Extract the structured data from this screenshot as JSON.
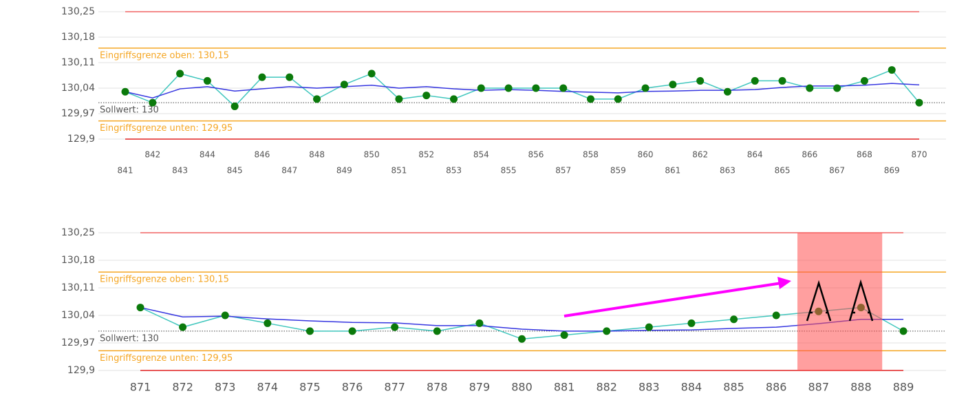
{
  "chart_data": [
    {
      "type": "line",
      "categories": [
        "841",
        "842",
        "843",
        "844",
        "845",
        "846",
        "847",
        "848",
        "849",
        "850",
        "851",
        "852",
        "853",
        "854",
        "855",
        "856",
        "857",
        "858",
        "859",
        "860",
        "861",
        "862",
        "863",
        "864",
        "865",
        "866",
        "867",
        "868",
        "869",
        "870"
      ],
      "series": [
        {
          "color": "#3fc6bd",
          "marker_color": "#0b7a0b",
          "values": [
            130.03,
            130.0,
            130.08,
            130.06,
            129.99,
            130.07,
            130.07,
            130.01,
            130.05,
            130.08,
            130.01,
            130.02,
            130.01,
            130.04,
            130.04,
            130.04,
            130.04,
            130.01,
            130.01,
            130.04,
            130.05,
            130.06,
            130.03,
            130.06,
            130.06,
            130.04,
            130.04,
            130.06,
            130.09,
            130.0
          ]
        },
        {
          "color": "#3535e0",
          "values": [
            130.03,
            130.013,
            130.038,
            130.044,
            130.032,
            130.038,
            130.044,
            130.04,
            130.044,
            130.048,
            130.04,
            130.044,
            130.038,
            130.034,
            130.036,
            130.034,
            130.031,
            130.029,
            130.027,
            130.031,
            130.032,
            130.034,
            130.034,
            130.036,
            130.042,
            130.046,
            130.046,
            130.048,
            130.053,
            130.049
          ]
        }
      ],
      "ylim": [
        129.9,
        130.25
      ],
      "yticks": [
        {
          "value": 130.25,
          "label": "130,25"
        },
        {
          "value": 130.18,
          "label": "130,18"
        },
        {
          "value": 130.11,
          "label": "130,11"
        },
        {
          "value": 130.04,
          "label": "130,04"
        },
        {
          "value": 129.97,
          "label": "129,97"
        },
        {
          "value": 129.9,
          "label": "129,9"
        }
      ],
      "grid": true,
      "reference_lines": [
        {
          "value": 130.25,
          "color": "#f06262",
          "extent": "data"
        },
        {
          "value": 130.15,
          "color": "#f5a623",
          "extent": "plot",
          "label": "Eingriffsgrenze oben: 130,15"
        },
        {
          "value": 130,
          "color": "#444444",
          "extent": "plot",
          "dashed": true,
          "label": "Sollwert: 130",
          "label_color": "#555555"
        },
        {
          "value": 129.95,
          "color": "#f5a623",
          "extent": "plot",
          "label": "Eingriffsgrenze unten: 129,95"
        },
        {
          "value": 129.9,
          "color": "#e02020",
          "extent": "data"
        }
      ]
    },
    {
      "type": "line",
      "categories": [
        "871",
        "872",
        "873",
        "874",
        "875",
        "876",
        "877",
        "878",
        "879",
        "880",
        "881",
        "882",
        "883",
        "884",
        "885",
        "886",
        "887",
        "888",
        "889"
      ],
      "series": [
        {
          "color": "#3fc6bd",
          "marker_color": "#0b7a0b",
          "values": [
            130.06,
            130.01,
            130.04,
            130.02,
            130.0,
            130.0,
            130.01,
            130.0,
            130.02,
            129.98,
            129.99,
            130.0,
            130.01,
            130.02,
            130.03,
            130.04,
            130.05,
            130.06,
            130.0
          ]
        },
        {
          "color": "#3535e0",
          "values": [
            130.06,
            130.036,
            130.038,
            130.031,
            130.026,
            130.022,
            130.021,
            130.014,
            130.014,
            130.005,
            130.0,
            130.0,
            130.002,
            130.003,
            130.007,
            130.01,
            130.019,
            130.03,
            130.03
          ]
        }
      ],
      "ylim": [
        129.9,
        130.25
      ],
      "yticks": [
        {
          "value": 130.25,
          "label": "130,25"
        },
        {
          "value": 130.18,
          "label": "130,18"
        },
        {
          "value": 130.11,
          "label": "130,11"
        },
        {
          "value": 130.04,
          "label": "130,04"
        },
        {
          "value": 129.97,
          "label": "129,97"
        },
        {
          "value": 129.9,
          "label": "129,9"
        }
      ],
      "grid": true,
      "reference_lines": [
        {
          "value": 130.25,
          "color": "#f06262",
          "extent": "data"
        },
        {
          "value": 130.15,
          "color": "#f5a623",
          "extent": "plot",
          "label": "Eingriffsgrenze oben: 130,15"
        },
        {
          "value": 130,
          "color": "#444444",
          "extent": "plot",
          "dashed": true,
          "label": "Sollwert: 130",
          "label_color": "#555555"
        },
        {
          "value": 129.95,
          "color": "#f5a623",
          "extent": "plot",
          "label": "Eingriffsgrenze unten: 129,95"
        },
        {
          "value": 129.9,
          "color": "#e02020",
          "extent": "data"
        }
      ],
      "highlight": {
        "categories": [
          "887",
          "888"
        ],
        "color": "rgba(255,80,80,0.55)"
      }
    }
  ]
}
